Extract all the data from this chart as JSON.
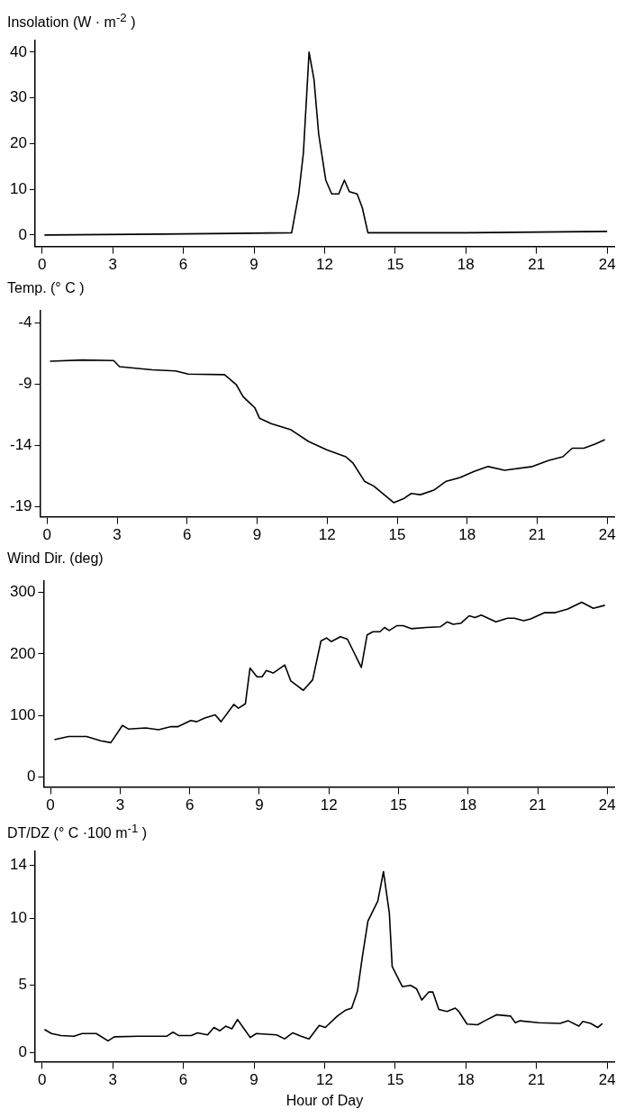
{
  "chart_data": [
    {
      "type": "line",
      "ylabel": "Insolation (W · m$^{-2}$ )",
      "xlim": [
        -0.3,
        24.3
      ],
      "xticks": [
        0,
        3,
        6,
        9,
        12,
        15,
        18,
        21,
        24
      ],
      "ylim": [
        -2.5,
        42.5
      ],
      "yticks": [
        0,
        10,
        20,
        30,
        40
      ],
      "grid": false,
      "legend": false,
      "marker": "none",
      "series": [
        {
          "color": "#000000",
          "x": [
            0.1,
            5,
            10.6,
            10.9,
            11.1,
            11.34,
            11.55,
            11.75,
            11.9,
            12.05,
            12.3,
            12.6,
            12.84,
            13.05,
            13.38,
            13.6,
            13.84,
            18,
            24
          ],
          "values": [
            0,
            0.2,
            0.5,
            9,
            18,
            40,
            34,
            22,
            17,
            12,
            9,
            9,
            12,
            9.5,
            9,
            6,
            0.5,
            0.5,
            0.8
          ]
        }
      ]
    },
    {
      "type": "line",
      "ylabel": "Temp. (° C )",
      "xlim": [
        -0.3,
        24.3
      ],
      "xticks": [
        0,
        3,
        6,
        9,
        12,
        15,
        18,
        21,
        24
      ],
      "ylim": [
        -19.8,
        -3
      ],
      "yticks": [
        -4,
        -9,
        -14,
        -19
      ],
      "grid": false,
      "legend": false,
      "marker": "none",
      "series": [
        {
          "color": "#000000",
          "x": [
            0.12,
            1.5,
            2.85,
            3.1,
            4.5,
            5.5,
            6.05,
            7.6,
            8.1,
            8.4,
            8.9,
            9.1,
            9.6,
            10.45,
            11.2,
            12,
            12.8,
            13.1,
            13.6,
            14,
            14.85,
            15.3,
            15.6,
            16,
            16.6,
            17.1,
            17.7,
            18.3,
            18.9,
            19.6,
            20.8,
            21.5,
            22.1,
            22.5,
            23,
            23.5,
            23.9
          ],
          "values": [
            -7.1,
            -7,
            -7.05,
            -7.55,
            -7.8,
            -7.9,
            -8.15,
            -8.2,
            -9,
            -10,
            -10.9,
            -11.75,
            -12.2,
            -12.7,
            -13.65,
            -14.35,
            -14.9,
            -15.4,
            -16.9,
            -17.3,
            -18.65,
            -18.3,
            -17.9,
            -18,
            -17.6,
            -16.9,
            -16.6,
            -16.1,
            -15.7,
            -16,
            -15.7,
            -15.2,
            -14.9,
            -14.2,
            -14.2,
            -13.85,
            -13.5
          ]
        }
      ]
    },
    {
      "type": "line",
      "ylabel": "Wind Dir. (deg)",
      "xlim": [
        -0.3,
        24.3
      ],
      "xticks": [
        0,
        3,
        6,
        9,
        12,
        15,
        18,
        21,
        24
      ],
      "ylim": [
        -16,
        318
      ],
      "yticks": [
        0,
        100,
        200,
        300
      ],
      "grid": false,
      "legend": false,
      "marker": "none",
      "series": [
        {
          "color": "#000000",
          "x": [
            0.17,
            0.78,
            1.55,
            2.16,
            2.6,
            3.1,
            3.37,
            4.1,
            4.66,
            5.2,
            5.5,
            6.05,
            6.3,
            6.65,
            7.1,
            7.35,
            7.9,
            8.1,
            8.4,
            8.6,
            8.9,
            9.12,
            9.3,
            9.6,
            10.1,
            10.36,
            10.9,
            11.3,
            11.66,
            11.9,
            12.1,
            12.5,
            12.8,
            13.4,
            13.65,
            13.9,
            14.2,
            14.4,
            14.6,
            14.94,
            15.2,
            15.55,
            16.2,
            16.8,
            17.1,
            17.36,
            17.7,
            18.05,
            18.3,
            18.57,
            19.2,
            19.7,
            20,
            20.4,
            20.7,
            21.3,
            21.76,
            22.3,
            22.9,
            23.4,
            23.9
          ],
          "values": [
            61,
            66,
            66,
            59,
            56,
            84,
            78,
            80,
            77,
            82,
            82,
            92,
            90,
            96,
            101,
            90,
            118,
            112,
            119,
            177,
            163,
            163,
            173,
            169,
            182,
            156,
            141,
            158,
            221,
            226,
            220,
            228,
            224,
            178,
            231,
            236,
            236,
            243,
            238,
            246,
            246,
            241,
            243,
            244,
            252,
            248,
            250,
            262,
            259,
            263,
            252,
            258,
            258,
            254,
            257,
            267,
            267,
            273,
            284,
            274,
            279
          ]
        }
      ]
    },
    {
      "type": "line",
      "ylabel": "DT/DZ (° C ·100 m$^{-1}$ )",
      "xlabel": "Hour of Day",
      "xlim": [
        -0.3,
        24.3
      ],
      "xticks": [
        0,
        3,
        6,
        9,
        12,
        15,
        18,
        21,
        24
      ],
      "ylim": [
        -0.7,
        15
      ],
      "yticks": [
        0,
        5,
        10,
        14
      ],
      "grid": false,
      "legend": false,
      "marker": "none",
      "series": [
        {
          "color": "#000000",
          "x": [
            0.1,
            0.4,
            0.8,
            1.35,
            1.7,
            2.3,
            2.8,
            3.07,
            4.1,
            5.3,
            5.56,
            5.8,
            6.34,
            6.6,
            7.03,
            7.3,
            7.55,
            7.8,
            8.06,
            8.3,
            8.58,
            8.84,
            9.1,
            9.96,
            10.3,
            10.65,
            11,
            11.34,
            11.77,
            12.03,
            12.54,
            12.9,
            13.15,
            13.4,
            13.6,
            13.84,
            14.26,
            14.5,
            14.75,
            14.87,
            15.3,
            15.65,
            15.9,
            16.13,
            16.42,
            16.6,
            16.85,
            17.2,
            17.55,
            17.7,
            18.05,
            18.5,
            18.8,
            19.3,
            19.9,
            20.1,
            20.3,
            21.1,
            22,
            22.35,
            22.8,
            22.97,
            23.3,
            23.6,
            23.8
          ],
          "values": [
            1.7,
            1.4,
            1.25,
            1.2,
            1.4,
            1.4,
            0.85,
            1.15,
            1.2,
            1.2,
            1.5,
            1.25,
            1.25,
            1.45,
            1.3,
            1.85,
            1.6,
            1.95,
            1.75,
            2.45,
            1.75,
            1.1,
            1.4,
            1.3,
            1,
            1.45,
            1.2,
            1,
            2,
            1.85,
            2.7,
            3.15,
            3.3,
            4.6,
            7.1,
            9.8,
            11.3,
            13.5,
            10.4,
            6.4,
            4.9,
            5,
            4.75,
            3.9,
            4.5,
            4.5,
            3.2,
            3.05,
            3.3,
            3.05,
            2.1,
            2.05,
            2.35,
            2.8,
            2.7,
            2.2,
            2.35,
            2.2,
            2.15,
            2.35,
            1.95,
            2.3,
            2.15,
            1.85,
            2.15
          ]
        }
      ]
    }
  ]
}
